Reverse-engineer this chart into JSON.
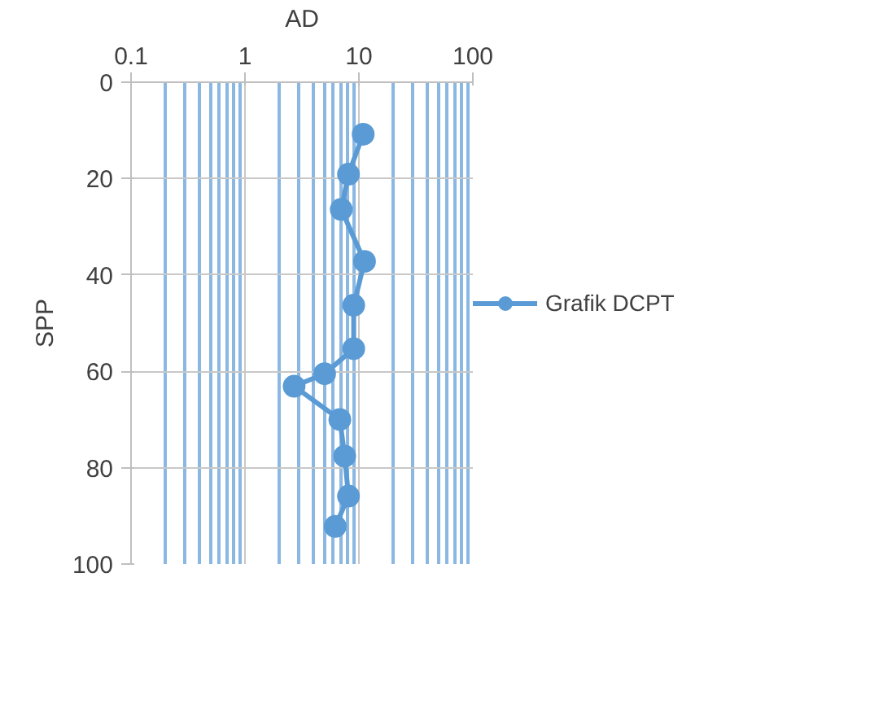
{
  "chart_data": {
    "type": "line",
    "xlabel": "AD",
    "ylabel": "SPP",
    "log": "x",
    "xlim": [
      0.1,
      100
    ],
    "xticks": [
      0.1,
      {
        "value": 0.2,
        "label": null
      },
      {
        "value": 0.3,
        "label": null
      },
      {
        "value": 0.4,
        "label": null
      },
      {
        "value": 0.5,
        "label": null
      },
      {
        "value": 0.6,
        "label": null
      },
      {
        "value": 0.7,
        "label": null
      },
      {
        "value": 0.8,
        "label": null
      },
      {
        "value": 0.9,
        "label": null
      },
      1,
      {
        "value": 2,
        "label": null
      },
      {
        "value": 3,
        "label": null
      },
      {
        "value": 4,
        "label": null
      },
      {
        "value": 5,
        "label": null
      },
      {
        "value": 6,
        "label": null
      },
      {
        "value": 7,
        "label": null
      },
      {
        "value": 8,
        "label": null
      },
      {
        "value": 9,
        "label": null
      },
      10,
      {
        "value": 20,
        "label": null
      },
      {
        "value": 30,
        "label": null
      },
      {
        "value": 40,
        "label": null
      },
      {
        "value": 50,
        "label": null
      },
      {
        "value": 60,
        "label": null
      },
      {
        "value": 70,
        "label": null
      },
      {
        "value": 80,
        "label": null
      },
      {
        "value": 90,
        "label": null
      },
      100
    ],
    "ylim": [
      100,
      0
    ],
    "yticks": [
      0,
      20,
      40,
      60,
      80,
      100
    ],
    "grid": true,
    "legend": "right",
    "marker": "circle",
    "line_style": "solid",
    "series": [
      {
        "name": "Grafik DCPT",
        "color": "#5b9bd5",
        "x": [
          10.9,
          8.1,
          7.0,
          11.2,
          9.0,
          9.0,
          5.0,
          2.7,
          6.8,
          7.5,
          8.1,
          6.2
        ],
        "values": [
          10.8,
          19.1,
          26.4,
          37.2,
          46.3,
          55.3,
          60.5,
          63.1,
          70.0,
          77.6,
          85.9,
          92.2
        ]
      }
    ]
  }
}
